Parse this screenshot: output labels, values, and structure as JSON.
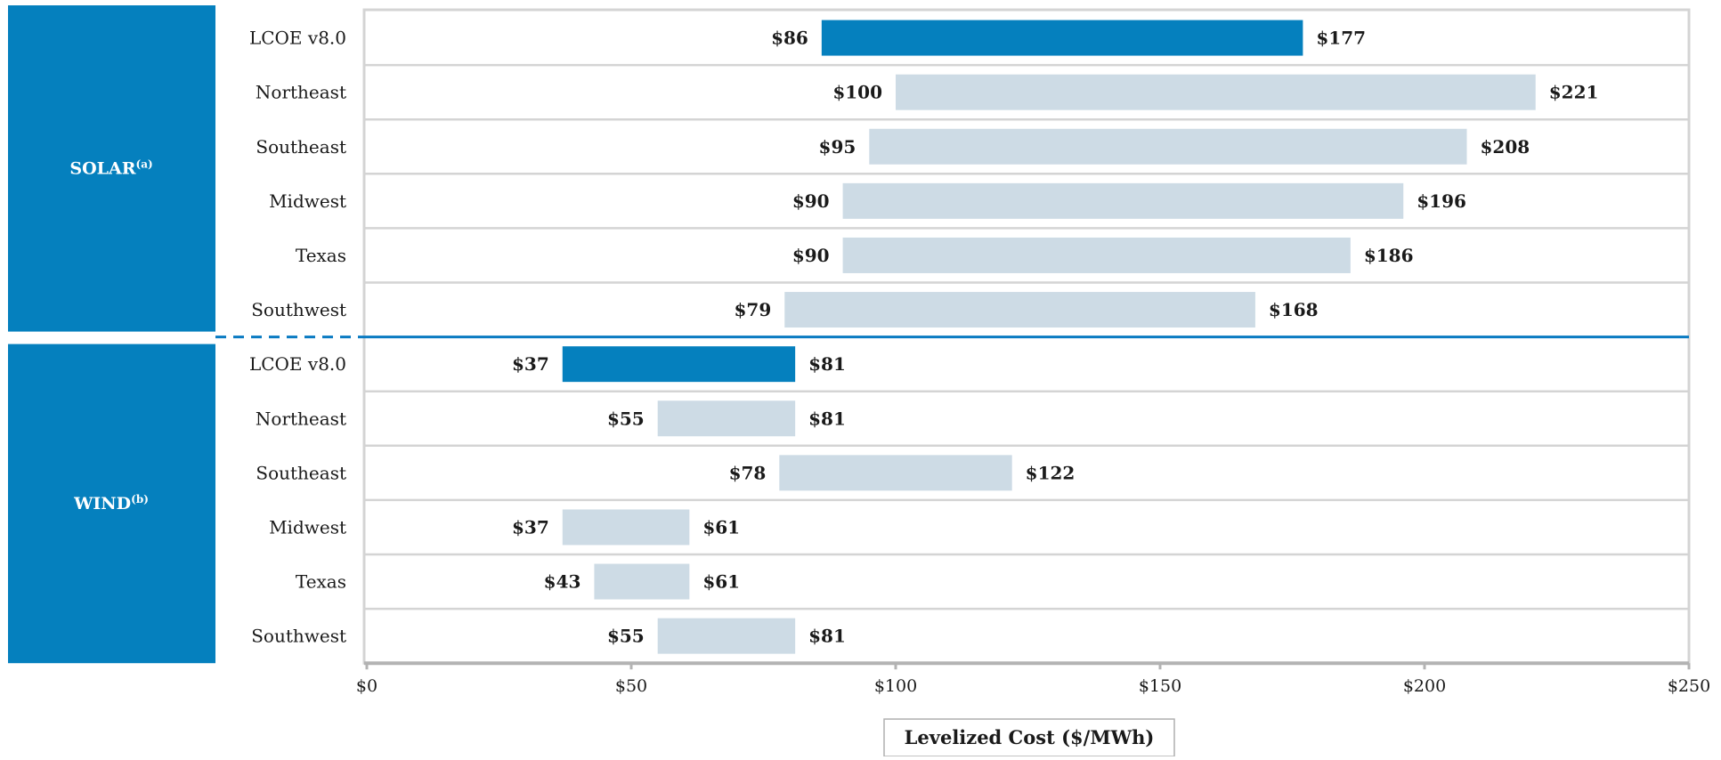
{
  "chart_data": {
    "type": "bar",
    "orientation": "horizontal-floating-range",
    "xlabel": "Levelized Cost ($/MWh)",
    "xlim": [
      0,
      250
    ],
    "x_ticks": [
      {
        "value": 0,
        "label": "$0"
      },
      {
        "value": 50,
        "label": "$50"
      },
      {
        "value": 100,
        "label": "$100"
      },
      {
        "value": 150,
        "label": "$150"
      },
      {
        "value": 200,
        "label": "$200"
      },
      {
        "value": 250,
        "label": "$250"
      }
    ],
    "grid": "horizontal-row-separators",
    "groups": [
      {
        "name": "SOLAR",
        "note": "(a)",
        "rows": [
          {
            "label": "LCOE v8.0",
            "low": 86,
            "high": 177,
            "low_label": "$86",
            "high_label": "$177",
            "highlight": true
          },
          {
            "label": "Northeast",
            "low": 100,
            "high": 221,
            "low_label": "$100",
            "high_label": "$221",
            "highlight": false
          },
          {
            "label": "Southeast",
            "low": 95,
            "high": 208,
            "low_label": "$95",
            "high_label": "$208",
            "highlight": false
          },
          {
            "label": "Midwest",
            "low": 90,
            "high": 196,
            "low_label": "$90",
            "high_label": "$196",
            "highlight": false
          },
          {
            "label": "Texas",
            "low": 90,
            "high": 186,
            "low_label": "$90",
            "high_label": "$186",
            "highlight": false
          },
          {
            "label": "Southwest",
            "low": 79,
            "high": 168,
            "low_label": "$79",
            "high_label": "$168",
            "highlight": false
          }
        ]
      },
      {
        "name": "WIND",
        "note": "(b)",
        "rows": [
          {
            "label": "LCOE v8.0",
            "low": 37,
            "high": 81,
            "low_label": "$37",
            "high_label": "$81",
            "highlight": true
          },
          {
            "label": "Northeast",
            "low": 55,
            "high": 81,
            "low_label": "$55",
            "high_label": "$81",
            "highlight": false
          },
          {
            "label": "Southeast",
            "low": 78,
            "high": 122,
            "low_label": "$78",
            "high_label": "$122",
            "highlight": false
          },
          {
            "label": "Midwest",
            "low": 37,
            "high": 61,
            "low_label": "$37",
            "high_label": "$61",
            "highlight": false
          },
          {
            "label": "Texas",
            "low": 43,
            "high": 61,
            "low_label": "$43",
            "high_label": "$61",
            "highlight": false
          },
          {
            "label": "Southwest",
            "low": 55,
            "high": 81,
            "low_label": "$55",
            "high_label": "$81",
            "highlight": false
          }
        ]
      }
    ]
  },
  "colors": {
    "highlight_bar": "#0580BE",
    "regional_bar": "#CDDBE5",
    "group_box": "#0580BE",
    "divider": "#0A7BC2",
    "gridline": "#D4D4D4",
    "axis": "#B3B3B3",
    "text": "#1A1A1A",
    "group_text": "#FFFFFF"
  }
}
